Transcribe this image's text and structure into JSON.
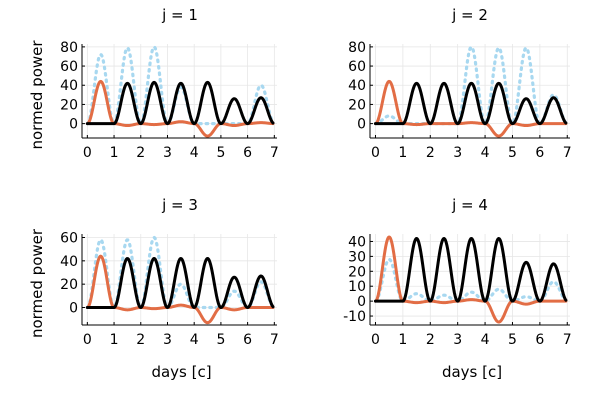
{
  "chart_data": [
    {
      "type": "line",
      "title": "j = 1",
      "xlabel": "",
      "ylabel": "normed power",
      "xlim": [
        -0.2,
        7.1
      ],
      "ylim": [
        -15,
        83
      ],
      "xticks": [
        0,
        1,
        2,
        3,
        4,
        5,
        6,
        7
      ],
      "yticks": [
        0,
        20,
        40,
        60,
        80
      ],
      "grid": true,
      "series": [
        {
          "color": "#a8d8f0",
          "style": "dotted",
          "peaks": [
            {
              "x": 0.5,
              "y": 72
            },
            {
              "x": 1.5,
              "y": 79
            },
            {
              "x": 2.5,
              "y": 80
            },
            {
              "x": 3.5,
              "y": 38
            },
            {
              "x": 4.5,
              "y": 0
            },
            {
              "x": 5.5,
              "y": 0
            },
            {
              "x": 6.5,
              "y": 40
            }
          ]
        },
        {
          "color": "#e26d45",
          "style": "solid",
          "peaks": [
            {
              "x": 0.5,
              "y": 44
            },
            {
              "x": 1.5,
              "y": -2
            },
            {
              "x": 2.5,
              "y": -1
            },
            {
              "x": 3.5,
              "y": 2
            },
            {
              "x": 4.5,
              "y": -13
            },
            {
              "x": 5.5,
              "y": -2
            },
            {
              "x": 6.5,
              "y": 1
            }
          ]
        },
        {
          "color": "#000000",
          "style": "solid",
          "peaks": [
            {
              "x": 0.5,
              "y": 0
            },
            {
              "x": 1.5,
              "y": 42
            },
            {
              "x": 2.5,
              "y": 43
            },
            {
              "x": 3.5,
              "y": 42
            },
            {
              "x": 4.5,
              "y": 43
            },
            {
              "x": 5.5,
              "y": 26
            },
            {
              "x": 6.5,
              "y": 27
            }
          ]
        }
      ]
    },
    {
      "type": "line",
      "title": "j = 2",
      "xlabel": "",
      "ylabel": "",
      "xlim": [
        -0.2,
        7.1
      ],
      "ylim": [
        -15,
        83
      ],
      "xticks": [
        0,
        1,
        2,
        3,
        4,
        5,
        6,
        7
      ],
      "yticks": [
        0,
        20,
        40,
        60,
        80
      ],
      "grid": true,
      "series": [
        {
          "color": "#a8d8f0",
          "style": "dotted",
          "peaks": [
            {
              "x": 0.5,
              "y": 8
            },
            {
              "x": 1.5,
              "y": 0
            },
            {
              "x": 2.5,
              "y": 0
            },
            {
              "x": 3.5,
              "y": 80
            },
            {
              "x": 4.5,
              "y": 79
            },
            {
              "x": 5.5,
              "y": 79
            },
            {
              "x": 6.5,
              "y": 30
            }
          ]
        },
        {
          "color": "#e26d45",
          "style": "solid",
          "peaks": [
            {
              "x": 0.5,
              "y": 44
            },
            {
              "x": 1.5,
              "y": -1
            },
            {
              "x": 2.5,
              "y": 0
            },
            {
              "x": 3.5,
              "y": 1
            },
            {
              "x": 4.5,
              "y": -13
            },
            {
              "x": 5.5,
              "y": -2
            },
            {
              "x": 6.5,
              "y": 0
            }
          ]
        },
        {
          "color": "#000000",
          "style": "solid",
          "peaks": [
            {
              "x": 0.5,
              "y": 0
            },
            {
              "x": 1.5,
              "y": 42
            },
            {
              "x": 2.5,
              "y": 42
            },
            {
              "x": 3.5,
              "y": 42
            },
            {
              "x": 4.5,
              "y": 42
            },
            {
              "x": 5.5,
              "y": 26
            },
            {
              "x": 6.5,
              "y": 27
            }
          ]
        }
      ]
    },
    {
      "type": "line",
      "title": "j = 3",
      "xlabel": "days [c]",
      "ylabel": "normed power",
      "xlim": [
        -0.2,
        7.1
      ],
      "ylim": [
        -15,
        63
      ],
      "xticks": [
        0,
        1,
        2,
        3,
        4,
        5,
        6,
        7
      ],
      "yticks": [
        0,
        20,
        40,
        60
      ],
      "grid": true,
      "series": [
        {
          "color": "#a8d8f0",
          "style": "dotted",
          "peaks": [
            {
              "x": 0.5,
              "y": 58
            },
            {
              "x": 1.5,
              "y": 58
            },
            {
              "x": 2.5,
              "y": 60
            },
            {
              "x": 3.5,
              "y": 20
            },
            {
              "x": 4.5,
              "y": 0
            },
            {
              "x": 5.5,
              "y": 14
            },
            {
              "x": 6.5,
              "y": 22
            }
          ]
        },
        {
          "color": "#e26d45",
          "style": "solid",
          "peaks": [
            {
              "x": 0.5,
              "y": 44
            },
            {
              "x": 1.5,
              "y": -2
            },
            {
              "x": 2.5,
              "y": -1
            },
            {
              "x": 3.5,
              "y": 2
            },
            {
              "x": 4.5,
              "y": -13
            },
            {
              "x": 5.5,
              "y": -2
            },
            {
              "x": 6.5,
              "y": 0
            }
          ]
        },
        {
          "color": "#000000",
          "style": "solid",
          "peaks": [
            {
              "x": 0.5,
              "y": 0
            },
            {
              "x": 1.5,
              "y": 42
            },
            {
              "x": 2.5,
              "y": 42
            },
            {
              "x": 3.5,
              "y": 42
            },
            {
              "x": 4.5,
              "y": 42
            },
            {
              "x": 5.5,
              "y": 26
            },
            {
              "x": 6.5,
              "y": 27
            }
          ]
        }
      ]
    },
    {
      "type": "line",
      "title": "j = 4",
      "xlabel": "days [c]",
      "ylabel": "",
      "xlim": [
        -0.2,
        7.1
      ],
      "ylim": [
        -16,
        45
      ],
      "xticks": [
        0,
        1,
        2,
        3,
        4,
        5,
        6,
        7
      ],
      "yticks": [
        -10,
        0,
        10,
        20,
        30,
        40
      ],
      "grid": true,
      "series": [
        {
          "color": "#a8d8f0",
          "style": "dotted",
          "peaks": [
            {
              "x": 0.5,
              "y": 28
            },
            {
              "x": 1.5,
              "y": 5
            },
            {
              "x": 2.5,
              "y": 4
            },
            {
              "x": 3.5,
              "y": 6
            },
            {
              "x": 4.5,
              "y": 8
            },
            {
              "x": 5.5,
              "y": 3
            },
            {
              "x": 6.5,
              "y": 13
            }
          ]
        },
        {
          "color": "#e26d45",
          "style": "solid",
          "peaks": [
            {
              "x": 0.5,
              "y": 43
            },
            {
              "x": 1.5,
              "y": -1
            },
            {
              "x": 2.5,
              "y": -1
            },
            {
              "x": 3.5,
              "y": 1
            },
            {
              "x": 4.5,
              "y": -14
            },
            {
              "x": 5.5,
              "y": -2
            },
            {
              "x": 6.5,
              "y": 0
            }
          ]
        },
        {
          "color": "#000000",
          "style": "solid",
          "peaks": [
            {
              "x": 0.5,
              "y": 0
            },
            {
              "x": 1.5,
              "y": 42
            },
            {
              "x": 2.5,
              "y": 42
            },
            {
              "x": 3.5,
              "y": 42
            },
            {
              "x": 4.5,
              "y": 42
            },
            {
              "x": 5.5,
              "y": 26
            },
            {
              "x": 6.5,
              "y": 25
            }
          ]
        }
      ]
    }
  ]
}
